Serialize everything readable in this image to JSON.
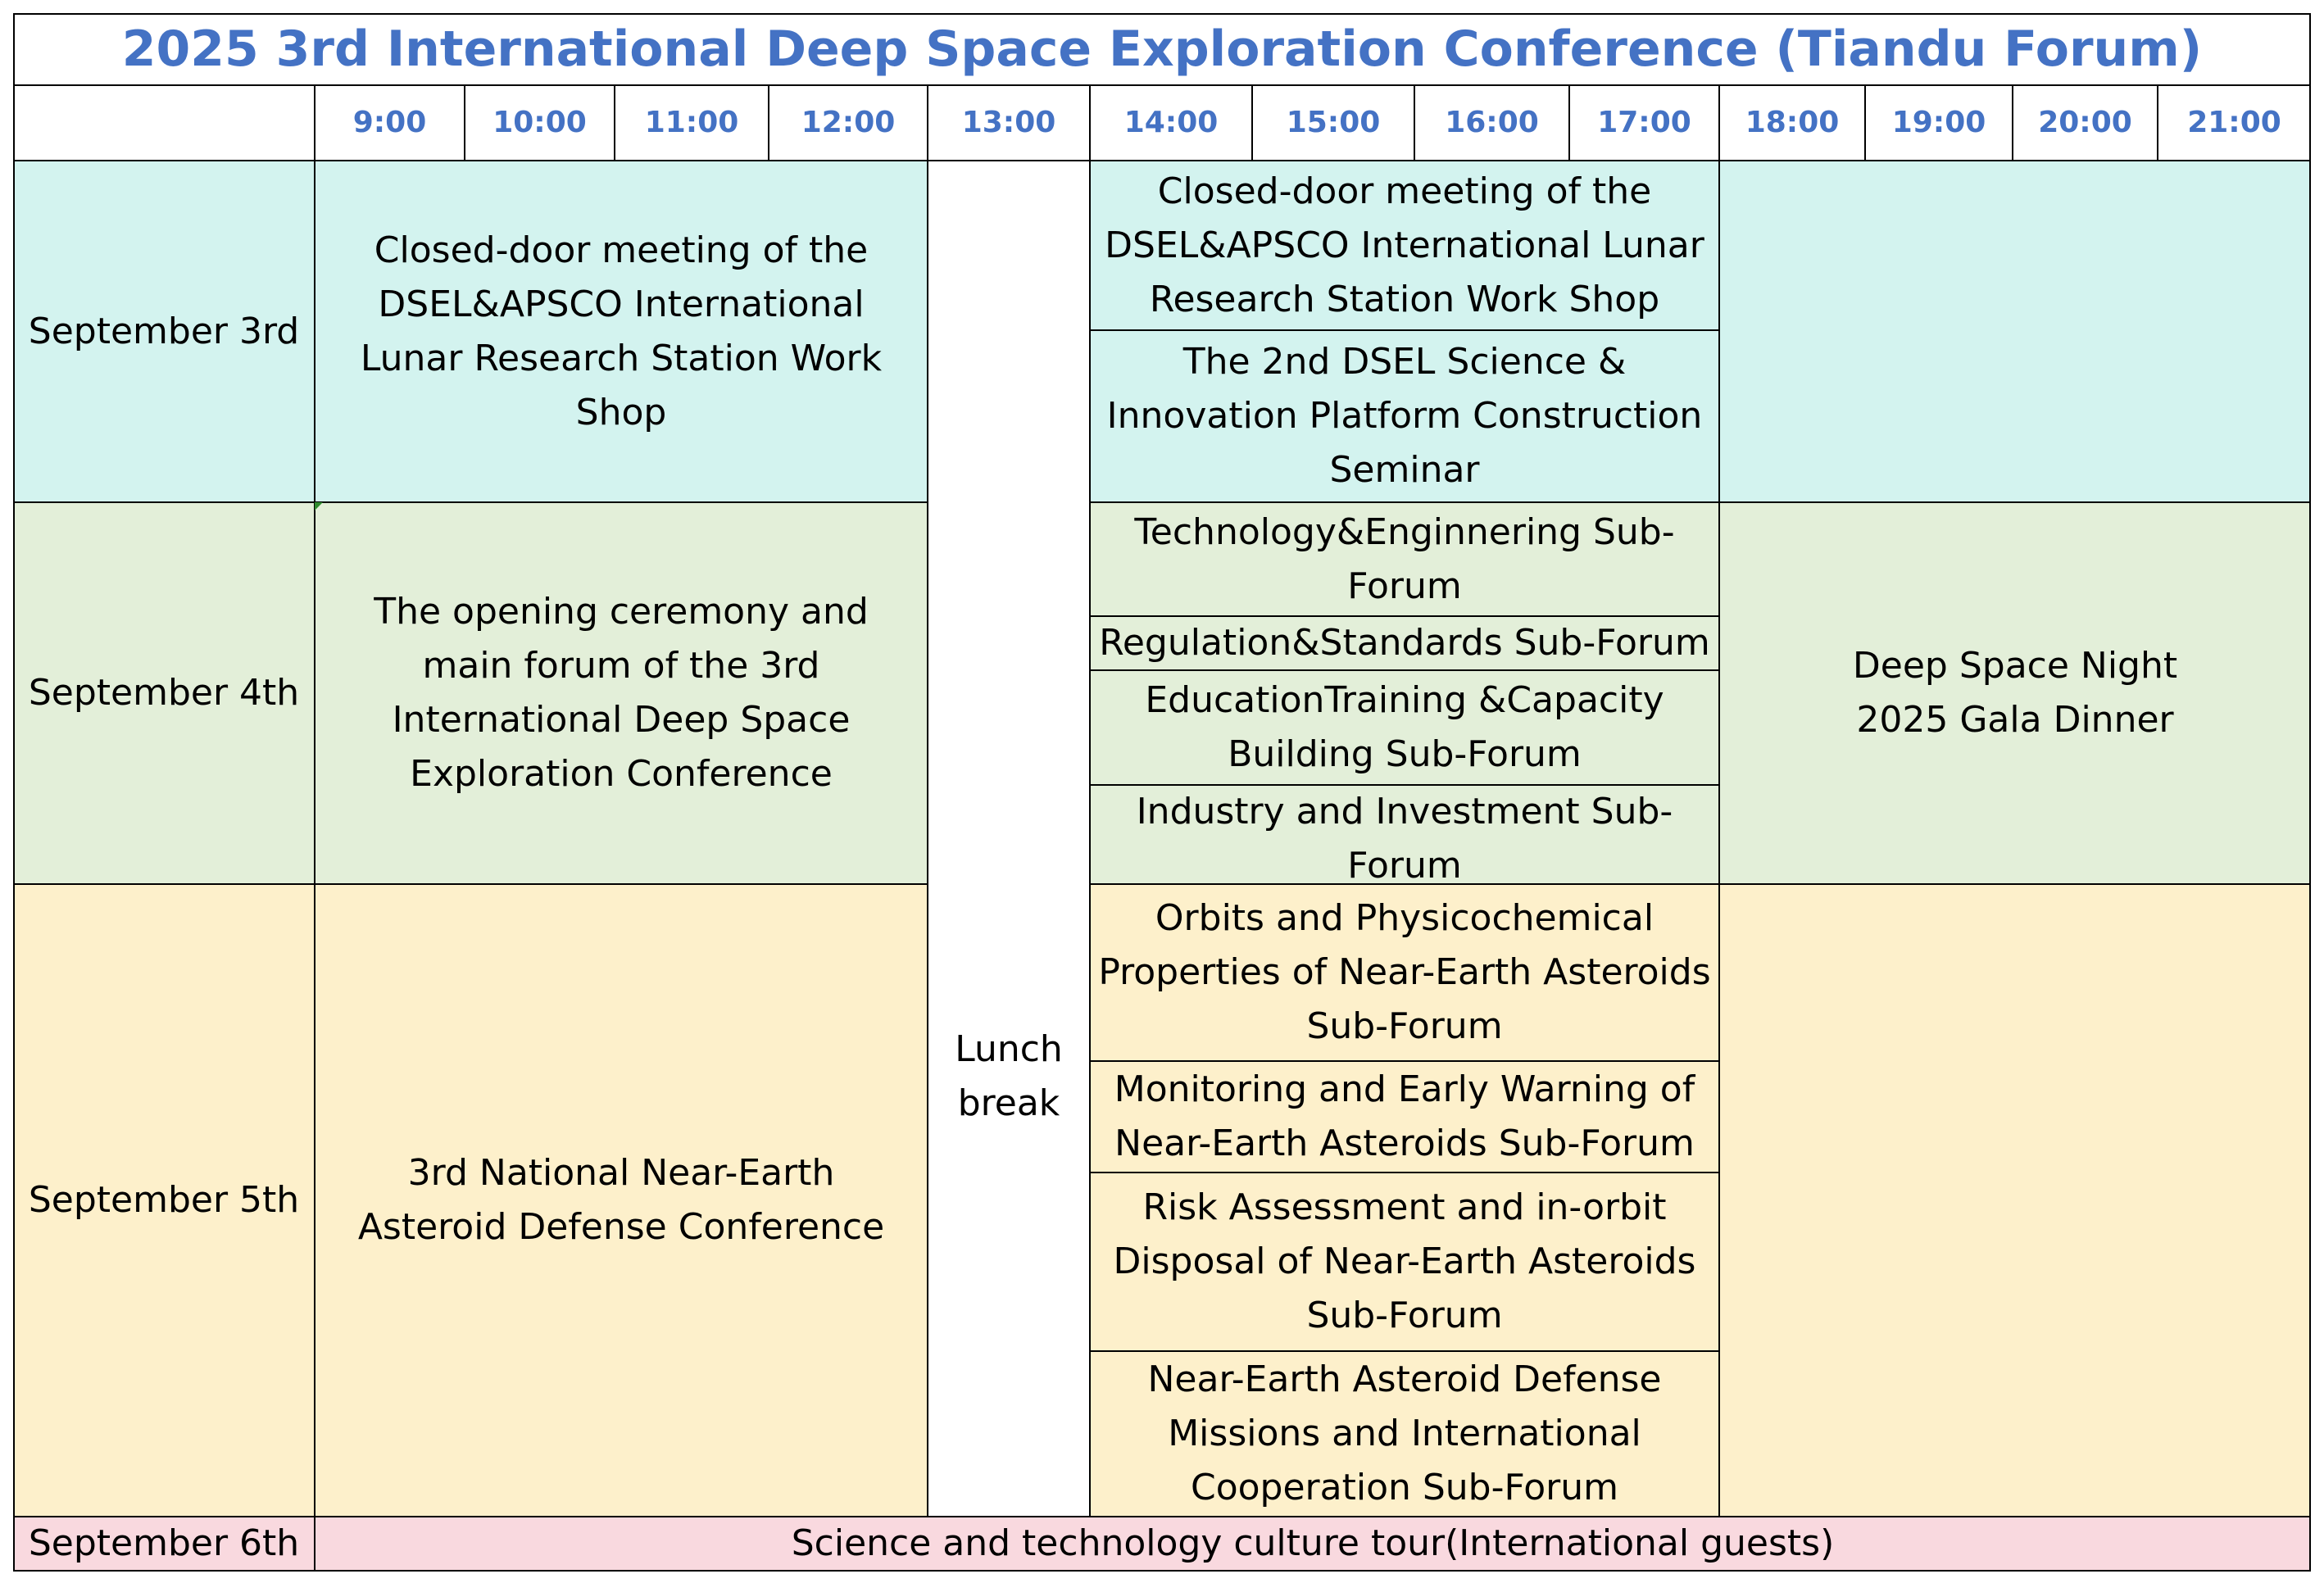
{
  "title": "2025 3rd International Deep Space Exploration Conference (Tiandu Forum)",
  "times": [
    "9:00",
    "10:00",
    "11:00",
    "12:00",
    "13:00",
    "14:00",
    "15:00",
    "16:00",
    "17:00",
    "18:00",
    "19:00",
    "20:00",
    "21:00"
  ],
  "colors": {
    "title_text": "#4472c4",
    "sept3_fill": "#d3f3ef",
    "sept4_fill": "#e3efd9",
    "sept5_fill": "#fdf0cb",
    "sept6_fill": "#f9d9df",
    "lunch_fill": "#ffffff",
    "grid_line": "#000000"
  },
  "days": {
    "sep3": {
      "date": "September 3rd",
      "morning": "Closed-door meeting of the DSEL&APSCO International Lunar Research Station Work Shop",
      "afternoon": [
        "Closed-door meeting of the DSEL&APSCO International Lunar Research Station Work Shop",
        "The 2nd DSEL Science & Innovation Platform Construction Seminar"
      ]
    },
    "sep4": {
      "date": "September 4th",
      "morning": "The opening ceremony and main forum of the 3rd International Deep Space Exploration Conference",
      "afternoon": [
        "Technology&Enginnering Sub-Forum",
        "Regulation&Standards Sub-Forum",
        "EducationTraining &Capacity Building Sub-Forum",
        "Industry and Investment Sub-Forum"
      ],
      "evening": "Deep Space Night 2025 Gala Dinner"
    },
    "sep5": {
      "date": "September 5th",
      "morning": "3rd National Near-Earth Asteroid Defense Conference",
      "afternoon": [
        "Orbits and Physicochemical Properties of Near-Earth Asteroids Sub-Forum",
        "Monitoring and Early Warning of Near-Earth Asteroids Sub-Forum",
        "Risk Assessment and in-orbit Disposal of Near-Earth Asteroids Sub-Forum",
        "Near-Earth Asteroid Defense Missions and International Cooperation Sub-Forum"
      ]
    },
    "sep6": {
      "date": "September 6th",
      "all_day": "Science and technology culture tour(International guests)"
    }
  },
  "lunch": "Lunch break"
}
